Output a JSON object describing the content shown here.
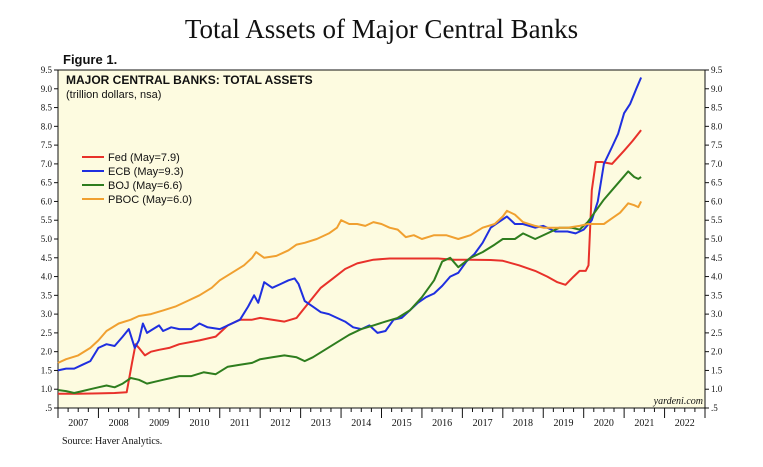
{
  "header": {
    "title": "Total Assets of Major Central Banks",
    "figure_label": "Figure 1."
  },
  "footer": {
    "source": "Source: Haver Analytics."
  },
  "colors": {
    "fed": "#e8312a",
    "ecb": "#1f2fe0",
    "boj": "#2e7d1e",
    "pboc": "#f0a030",
    "panel_bg": "#fdfbe0"
  },
  "chart_data": {
    "type": "line",
    "title": "MAJOR CENTRAL BANKS: TOTAL ASSETS",
    "subtitle": "(trillion dollars, nsa)",
    "credit": "yardeni.com",
    "ylim": [
      0.5,
      9.5
    ],
    "y_ticks": [
      "9.5",
      "9.0",
      "8.5",
      "8.0",
      "7.5",
      "7.0",
      "6.5",
      "6.0",
      "5.5",
      "5.0",
      "4.5",
      "4.0",
      "3.5",
      "3.0",
      "2.5",
      "2.0",
      "1.5",
      "1.0",
      ".5"
    ],
    "y_tick_values": [
      9.5,
      9.0,
      8.5,
      8.0,
      7.5,
      7.0,
      6.5,
      6.0,
      5.5,
      5.0,
      4.5,
      4.0,
      3.5,
      3.0,
      2.5,
      2.0,
      1.5,
      1.0,
      0.5
    ],
    "x_range": [
      2007.0,
      2023.0
    ],
    "x_labels": [
      "2007",
      "2008",
      "2009",
      "2010",
      "2011",
      "2012",
      "2013",
      "2014",
      "2015",
      "2016",
      "2017",
      "2018",
      "2019",
      "2020",
      "2021",
      "2022"
    ],
    "legend_placement": "left",
    "series": [
      {
        "key": "fed",
        "name": "Fed (May=7.9)",
        "points": [
          [
            2007.0,
            0.88
          ],
          [
            2007.5,
            0.88
          ],
          [
            2008.0,
            0.89
          ],
          [
            2008.4,
            0.9
          ],
          [
            2008.7,
            0.92
          ],
          [
            2008.83,
            1.7
          ],
          [
            2008.92,
            2.2
          ],
          [
            2009.0,
            2.1
          ],
          [
            2009.15,
            1.9
          ],
          [
            2009.3,
            2.0
          ],
          [
            2009.5,
            2.05
          ],
          [
            2009.75,
            2.1
          ],
          [
            2010.0,
            2.2
          ],
          [
            2010.5,
            2.3
          ],
          [
            2010.9,
            2.4
          ],
          [
            2011.2,
            2.7
          ],
          [
            2011.5,
            2.85
          ],
          [
            2011.8,
            2.85
          ],
          [
            2012.0,
            2.9
          ],
          [
            2012.3,
            2.85
          ],
          [
            2012.6,
            2.8
          ],
          [
            2012.9,
            2.9
          ],
          [
            2013.2,
            3.3
          ],
          [
            2013.5,
            3.7
          ],
          [
            2013.8,
            3.95
          ],
          [
            2014.1,
            4.2
          ],
          [
            2014.4,
            4.35
          ],
          [
            2014.8,
            4.45
          ],
          [
            2015.2,
            4.48
          ],
          [
            2015.8,
            4.48
          ],
          [
            2016.4,
            4.48
          ],
          [
            2016.8,
            4.45
          ],
          [
            2017.2,
            4.45
          ],
          [
            2017.7,
            4.44
          ],
          [
            2018.0,
            4.42
          ],
          [
            2018.4,
            4.3
          ],
          [
            2018.8,
            4.15
          ],
          [
            2019.1,
            4.0
          ],
          [
            2019.35,
            3.85
          ],
          [
            2019.55,
            3.78
          ],
          [
            2019.75,
            4.0
          ],
          [
            2019.9,
            4.15
          ],
          [
            2020.05,
            4.15
          ],
          [
            2020.12,
            4.3
          ],
          [
            2020.2,
            6.3
          ],
          [
            2020.3,
            7.05
          ],
          [
            2020.45,
            7.05
          ],
          [
            2020.7,
            7.0
          ],
          [
            2021.0,
            7.35
          ],
          [
            2021.2,
            7.6
          ],
          [
            2021.42,
            7.9
          ]
        ]
      },
      {
        "key": "ecb",
        "name": "ECB (May=9.3)",
        "points": [
          [
            2007.0,
            1.5
          ],
          [
            2007.2,
            1.55
          ],
          [
            2007.4,
            1.55
          ],
          [
            2007.6,
            1.65
          ],
          [
            2007.8,
            1.75
          ],
          [
            2008.0,
            2.1
          ],
          [
            2008.2,
            2.2
          ],
          [
            2008.4,
            2.15
          ],
          [
            2008.6,
            2.4
          ],
          [
            2008.75,
            2.6
          ],
          [
            2008.9,
            2.1
          ],
          [
            2009.0,
            2.3
          ],
          [
            2009.1,
            2.75
          ],
          [
            2009.2,
            2.5
          ],
          [
            2009.35,
            2.6
          ],
          [
            2009.5,
            2.7
          ],
          [
            2009.6,
            2.55
          ],
          [
            2009.8,
            2.65
          ],
          [
            2010.0,
            2.6
          ],
          [
            2010.3,
            2.6
          ],
          [
            2010.5,
            2.75
          ],
          [
            2010.7,
            2.65
          ],
          [
            2011.0,
            2.6
          ],
          [
            2011.3,
            2.75
          ],
          [
            2011.5,
            2.85
          ],
          [
            2011.7,
            3.2
          ],
          [
            2011.85,
            3.5
          ],
          [
            2011.95,
            3.3
          ],
          [
            2012.1,
            3.85
          ],
          [
            2012.3,
            3.7
          ],
          [
            2012.5,
            3.8
          ],
          [
            2012.7,
            3.9
          ],
          [
            2012.85,
            3.95
          ],
          [
            2012.95,
            3.8
          ],
          [
            2013.1,
            3.35
          ],
          [
            2013.3,
            3.2
          ],
          [
            2013.5,
            3.05
          ],
          [
            2013.7,
            3.0
          ],
          [
            2013.9,
            2.9
          ],
          [
            2014.1,
            2.8
          ],
          [
            2014.3,
            2.65
          ],
          [
            2014.5,
            2.6
          ],
          [
            2014.7,
            2.7
          ],
          [
            2014.9,
            2.5
          ],
          [
            2015.1,
            2.55
          ],
          [
            2015.3,
            2.85
          ],
          [
            2015.5,
            2.9
          ],
          [
            2015.7,
            3.1
          ],
          [
            2015.9,
            3.3
          ],
          [
            2016.1,
            3.45
          ],
          [
            2016.3,
            3.55
          ],
          [
            2016.5,
            3.75
          ],
          [
            2016.7,
            4.0
          ],
          [
            2016.9,
            4.1
          ],
          [
            2017.1,
            4.4
          ],
          [
            2017.3,
            4.6
          ],
          [
            2017.5,
            4.9
          ],
          [
            2017.7,
            5.3
          ],
          [
            2017.9,
            5.45
          ],
          [
            2018.1,
            5.6
          ],
          [
            2018.3,
            5.4
          ],
          [
            2018.5,
            5.4
          ],
          [
            2018.8,
            5.3
          ],
          [
            2019.0,
            5.35
          ],
          [
            2019.3,
            5.2
          ],
          [
            2019.6,
            5.2
          ],
          [
            2019.8,
            5.15
          ],
          [
            2020.0,
            5.25
          ],
          [
            2020.2,
            5.5
          ],
          [
            2020.35,
            6.0
          ],
          [
            2020.5,
            7.0
          ],
          [
            2020.7,
            7.45
          ],
          [
            2020.85,
            7.8
          ],
          [
            2021.0,
            8.35
          ],
          [
            2021.15,
            8.6
          ],
          [
            2021.3,
            9.0
          ],
          [
            2021.42,
            9.3
          ]
        ]
      },
      {
        "key": "boj",
        "name": "BOJ (May=6.6)",
        "points": [
          [
            2007.0,
            0.98
          ],
          [
            2007.2,
            0.95
          ],
          [
            2007.4,
            0.9
          ],
          [
            2007.6,
            0.95
          ],
          [
            2007.8,
            1.0
          ],
          [
            2008.0,
            1.05
          ],
          [
            2008.2,
            1.1
          ],
          [
            2008.4,
            1.05
          ],
          [
            2008.6,
            1.15
          ],
          [
            2008.8,
            1.3
          ],
          [
            2009.0,
            1.25
          ],
          [
            2009.2,
            1.15
          ],
          [
            2009.4,
            1.2
          ],
          [
            2009.6,
            1.25
          ],
          [
            2009.8,
            1.3
          ],
          [
            2010.0,
            1.35
          ],
          [
            2010.3,
            1.35
          ],
          [
            2010.6,
            1.45
          ],
          [
            2010.9,
            1.4
          ],
          [
            2011.2,
            1.6
          ],
          [
            2011.5,
            1.65
          ],
          [
            2011.8,
            1.7
          ],
          [
            2012.0,
            1.8
          ],
          [
            2012.3,
            1.85
          ],
          [
            2012.6,
            1.9
          ],
          [
            2012.9,
            1.85
          ],
          [
            2013.1,
            1.75
          ],
          [
            2013.3,
            1.85
          ],
          [
            2013.6,
            2.05
          ],
          [
            2013.9,
            2.25
          ],
          [
            2014.2,
            2.45
          ],
          [
            2014.5,
            2.6
          ],
          [
            2014.8,
            2.7
          ],
          [
            2015.1,
            2.8
          ],
          [
            2015.4,
            2.9
          ],
          [
            2015.7,
            3.1
          ],
          [
            2016.0,
            3.45
          ],
          [
            2016.3,
            3.9
          ],
          [
            2016.5,
            4.4
          ],
          [
            2016.7,
            4.5
          ],
          [
            2016.9,
            4.25
          ],
          [
            2017.2,
            4.5
          ],
          [
            2017.5,
            4.65
          ],
          [
            2017.8,
            4.85
          ],
          [
            2018.0,
            5.0
          ],
          [
            2018.3,
            5.0
          ],
          [
            2018.5,
            5.15
          ],
          [
            2018.8,
            5.0
          ],
          [
            2019.1,
            5.15
          ],
          [
            2019.4,
            5.3
          ],
          [
            2019.7,
            5.3
          ],
          [
            2019.9,
            5.25
          ],
          [
            2020.1,
            5.45
          ],
          [
            2020.3,
            5.75
          ],
          [
            2020.5,
            6.05
          ],
          [
            2020.7,
            6.3
          ],
          [
            2020.9,
            6.55
          ],
          [
            2021.1,
            6.8
          ],
          [
            2021.25,
            6.65
          ],
          [
            2021.35,
            6.6
          ],
          [
            2021.42,
            6.65
          ]
        ]
      },
      {
        "key": "pboc",
        "name": "PBOC (May=6.0)",
        "points": [
          [
            2007.0,
            1.7
          ],
          [
            2007.2,
            1.8
          ],
          [
            2007.5,
            1.9
          ],
          [
            2007.8,
            2.1
          ],
          [
            2008.0,
            2.3
          ],
          [
            2008.2,
            2.55
          ],
          [
            2008.5,
            2.75
          ],
          [
            2008.8,
            2.85
          ],
          [
            2009.0,
            2.95
          ],
          [
            2009.3,
            3.0
          ],
          [
            2009.6,
            3.1
          ],
          [
            2009.9,
            3.2
          ],
          [
            2010.2,
            3.35
          ],
          [
            2010.5,
            3.5
          ],
          [
            2010.8,
            3.7
          ],
          [
            2011.0,
            3.9
          ],
          [
            2011.3,
            4.1
          ],
          [
            2011.6,
            4.3
          ],
          [
            2011.8,
            4.5
          ],
          [
            2011.9,
            4.65
          ],
          [
            2012.1,
            4.5
          ],
          [
            2012.4,
            4.55
          ],
          [
            2012.7,
            4.7
          ],
          [
            2012.9,
            4.85
          ],
          [
            2013.1,
            4.9
          ],
          [
            2013.4,
            5.0
          ],
          [
            2013.7,
            5.15
          ],
          [
            2013.9,
            5.3
          ],
          [
            2014.0,
            5.5
          ],
          [
            2014.2,
            5.4
          ],
          [
            2014.4,
            5.4
          ],
          [
            2014.6,
            5.35
          ],
          [
            2014.8,
            5.45
          ],
          [
            2015.0,
            5.4
          ],
          [
            2015.2,
            5.3
          ],
          [
            2015.4,
            5.25
          ],
          [
            2015.6,
            5.05
          ],
          [
            2015.8,
            5.1
          ],
          [
            2016.0,
            5.0
          ],
          [
            2016.3,
            5.1
          ],
          [
            2016.6,
            5.1
          ],
          [
            2016.9,
            5.0
          ],
          [
            2017.2,
            5.1
          ],
          [
            2017.5,
            5.3
          ],
          [
            2017.8,
            5.4
          ],
          [
            2018.0,
            5.6
          ],
          [
            2018.1,
            5.75
          ],
          [
            2018.3,
            5.65
          ],
          [
            2018.5,
            5.45
          ],
          [
            2018.8,
            5.35
          ],
          [
            2019.0,
            5.3
          ],
          [
            2019.3,
            5.3
          ],
          [
            2019.6,
            5.3
          ],
          [
            2019.9,
            5.35
          ],
          [
            2020.1,
            5.4
          ],
          [
            2020.3,
            5.4
          ],
          [
            2020.5,
            5.4
          ],
          [
            2020.7,
            5.55
          ],
          [
            2020.9,
            5.7
          ],
          [
            2021.1,
            5.95
          ],
          [
            2021.25,
            5.9
          ],
          [
            2021.35,
            5.85
          ],
          [
            2021.42,
            6.0
          ]
        ]
      }
    ]
  }
}
